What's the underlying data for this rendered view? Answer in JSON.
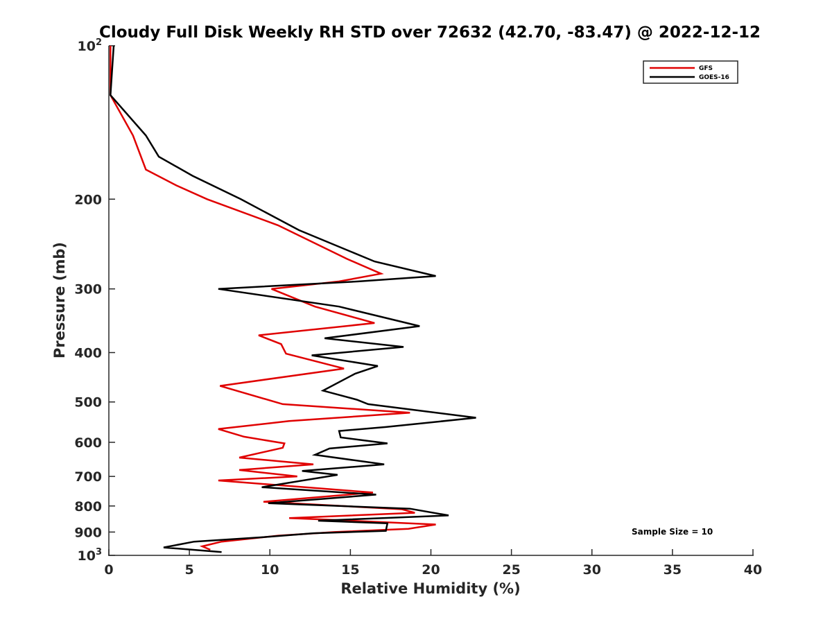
{
  "chart_data": {
    "type": "line",
    "title": "Cloudy Full Disk Weekly RH STD over 72632 (42.70, -83.47) @ 2022-12-12",
    "xlabel": "Relative Humidity (%)",
    "ylabel": "Pressure (mb)",
    "xlim": [
      0,
      40
    ],
    "ylim": [
      100,
      1000
    ],
    "yscale": "log",
    "y_reversed": true,
    "grid": false,
    "legend_position": "top-right",
    "x_ticks": [
      0,
      5,
      10,
      15,
      20,
      25,
      30,
      35,
      40
    ],
    "y_ticks": [
      {
        "value": 100,
        "base": "10",
        "exp": "2"
      },
      {
        "value": 200,
        "label": "200"
      },
      {
        "value": 300,
        "label": "300"
      },
      {
        "value": 400,
        "label": "400"
      },
      {
        "value": 500,
        "label": "500"
      },
      {
        "value": 600,
        "label": "600"
      },
      {
        "value": 700,
        "label": "700"
      },
      {
        "value": 800,
        "label": "800"
      },
      {
        "value": 900,
        "label": "900"
      },
      {
        "value": 1000,
        "base": "10",
        "exp": "3"
      }
    ],
    "annotation": "Sample Size = 10",
    "series": [
      {
        "name": "GFS",
        "color": "#e00000",
        "points": [
          [
            0.1,
            100
          ],
          [
            0.1,
            125
          ],
          [
            1.5,
            150
          ],
          [
            2.3,
            175
          ],
          [
            4.2,
            188
          ],
          [
            6.1,
            200
          ],
          [
            10.5,
            225
          ],
          [
            14.8,
            262
          ],
          [
            16.9,
            280
          ],
          [
            14.3,
            290
          ],
          [
            10.1,
            300
          ],
          [
            12.8,
            325
          ],
          [
            16.5,
            350
          ],
          [
            9.3,
            370
          ],
          [
            10.7,
            385
          ],
          [
            11.0,
            402
          ],
          [
            14.6,
            430
          ],
          [
            6.9,
            465
          ],
          [
            10.8,
            505
          ],
          [
            18.7,
            525
          ],
          [
            11.2,
            545
          ],
          [
            6.8,
            565
          ],
          [
            8.4,
            585
          ],
          [
            10.9,
            603
          ],
          [
            10.8,
            615
          ],
          [
            8.1,
            643
          ],
          [
            12.7,
            663
          ],
          [
            8.1,
            680
          ],
          [
            11.7,
            700
          ],
          [
            6.8,
            713
          ],
          [
            16.4,
            753
          ],
          [
            9.6,
            785
          ],
          [
            18.2,
            812
          ],
          [
            19.0,
            825
          ],
          [
            11.2,
            845
          ],
          [
            13.2,
            850
          ],
          [
            20.3,
            870
          ],
          [
            18.6,
            887
          ],
          [
            14.0,
            900
          ],
          [
            10.5,
            915
          ],
          [
            7.0,
            940
          ],
          [
            5.8,
            960
          ],
          [
            6.3,
            975
          ]
        ]
      },
      {
        "name": "GOES-16",
        "color": "#000000",
        "points": [
          [
            0.3,
            100
          ],
          [
            0.1,
            125
          ],
          [
            2.3,
            150
          ],
          [
            3.1,
            165
          ],
          [
            5.2,
            180
          ],
          [
            8.2,
            200
          ],
          [
            11.8,
            230
          ],
          [
            16.5,
            265
          ],
          [
            20.3,
            283
          ],
          [
            15.5,
            290
          ],
          [
            6.8,
            300
          ],
          [
            14.3,
            325
          ],
          [
            19.3,
            355
          ],
          [
            13.4,
            375
          ],
          [
            18.3,
            390
          ],
          [
            12.6,
            405
          ],
          [
            16.7,
            425
          ],
          [
            15.3,
            440
          ],
          [
            13.3,
            475
          ],
          [
            15.4,
            495
          ],
          [
            16.1,
            505
          ],
          [
            22.8,
            537
          ],
          [
            17.2,
            560
          ],
          [
            14.3,
            570
          ],
          [
            14.4,
            587
          ],
          [
            17.3,
            603
          ],
          [
            13.7,
            617
          ],
          [
            12.8,
            635
          ],
          [
            17.1,
            663
          ],
          [
            12.0,
            683
          ],
          [
            14.2,
            695
          ],
          [
            9.5,
            735
          ],
          [
            16.6,
            760
          ],
          [
            9.9,
            790
          ],
          [
            18.7,
            810
          ],
          [
            21.1,
            835
          ],
          [
            13.0,
            855
          ],
          [
            17.3,
            865
          ],
          [
            17.2,
            895
          ],
          [
            12.7,
            905
          ],
          [
            9.8,
            920
          ],
          [
            5.3,
            940
          ],
          [
            3.4,
            965
          ],
          [
            7.0,
            985
          ]
        ]
      }
    ]
  }
}
